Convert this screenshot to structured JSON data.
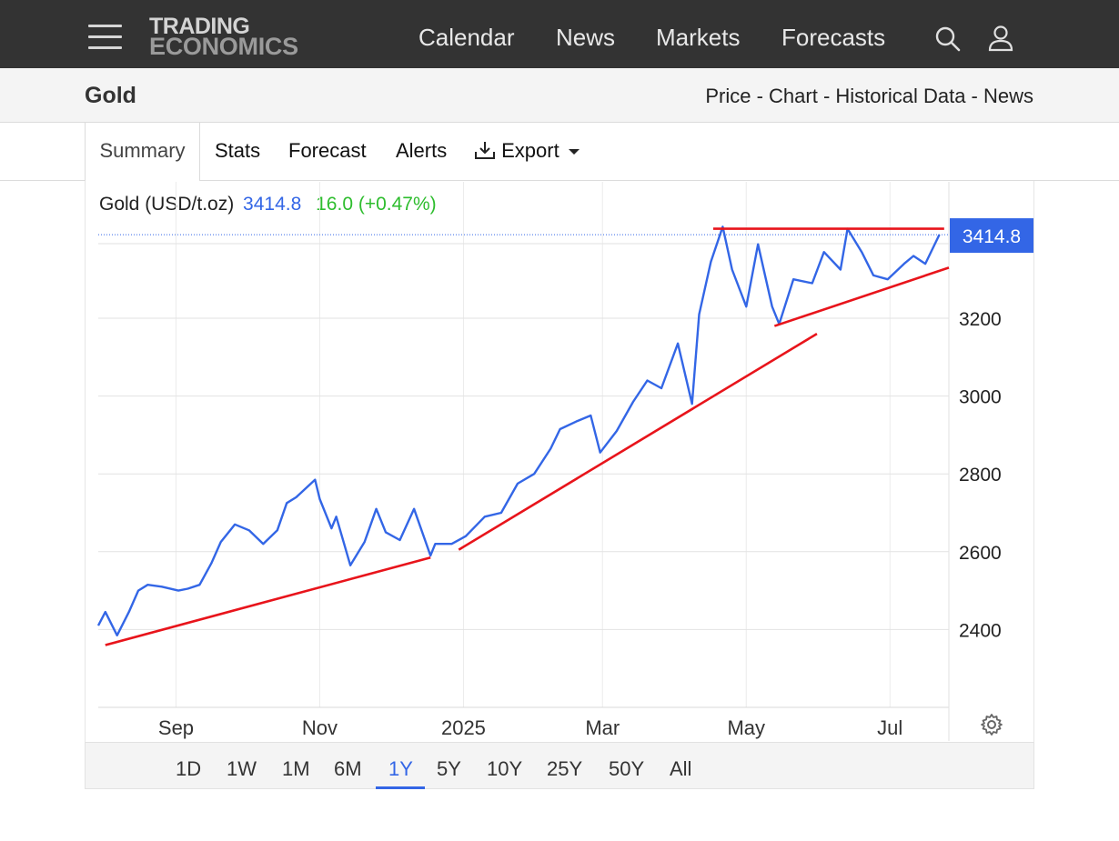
{
  "header": {
    "logo_line1": "TRADING",
    "logo_line2": "ECONOMICS",
    "nav": [
      "Calendar",
      "News",
      "Markets",
      "Forecasts"
    ]
  },
  "subheader": {
    "title": "Gold",
    "links": "Price - Chart - Historical Data - News"
  },
  "tabs": {
    "summary": "Summary",
    "stats": "Stats",
    "forecast": "Forecast",
    "alerts": "Alerts",
    "export": "Export"
  },
  "legend": {
    "name": "Gold (USD/t.oz)",
    "price": "3414.8",
    "change": "16.0 (+0.47%)"
  },
  "ranges": [
    "1D",
    "1W",
    "1M",
    "6M",
    "1Y",
    "5Y",
    "10Y",
    "25Y",
    "50Y",
    "All"
  ],
  "active_range": "1Y",
  "colors": {
    "line": "#3366e6",
    "trend": "#e8141b",
    "accent": "#3366e6",
    "positive": "#2ebd2e",
    "topbar": "#333333"
  },
  "chart_data": {
    "type": "line",
    "series": [
      {
        "name": "Gold (USD/t.oz)",
        "x": [
          "2024-07-30",
          "2024-08-02",
          "2024-08-07",
          "2024-08-12",
          "2024-08-16",
          "2024-08-20",
          "2024-08-26",
          "2024-09-02",
          "2024-09-06",
          "2024-09-11",
          "2024-09-16",
          "2024-09-20",
          "2024-09-26",
          "2024-10-02",
          "2024-10-08",
          "2024-10-14",
          "2024-10-18",
          "2024-10-22",
          "2024-10-30",
          "2024-11-01",
          "2024-11-06",
          "2024-11-08",
          "2024-11-14",
          "2024-11-20",
          "2024-11-25",
          "2024-11-29",
          "2024-12-05",
          "2024-12-11",
          "2024-12-18",
          "2024-12-20",
          "2024-12-27",
          "2025-01-02",
          "2025-01-10",
          "2025-01-17",
          "2025-01-24",
          "2025-01-31",
          "2025-02-07",
          "2025-02-11",
          "2025-02-18",
          "2025-02-24",
          "2025-02-28",
          "2025-03-07",
          "2025-03-14",
          "2025-03-20",
          "2025-03-26",
          "2025-04-02",
          "2025-04-08",
          "2025-04-11",
          "2025-04-16",
          "2025-04-21",
          "2025-04-25",
          "2025-05-01",
          "2025-05-06",
          "2025-05-12",
          "2025-05-15",
          "2025-05-21",
          "2025-05-29",
          "2025-06-03",
          "2025-06-10",
          "2025-06-13",
          "2025-06-19",
          "2025-06-24",
          "2025-06-30",
          "2025-07-07",
          "2025-07-11",
          "2025-07-16",
          "2025-07-22"
        ],
        "values": [
          2410,
          2445,
          2385,
          2445,
          2500,
          2515,
          2510,
          2500,
          2505,
          2515,
          2570,
          2625,
          2670,
          2655,
          2620,
          2655,
          2725,
          2740,
          2785,
          2735,
          2660,
          2690,
          2565,
          2625,
          2710,
          2650,
          2630,
          2710,
          2590,
          2620,
          2620,
          2640,
          2690,
          2700,
          2775,
          2800,
          2865,
          2915,
          2935,
          2950,
          2855,
          2910,
          2985,
          3040,
          3020,
          3135,
          2980,
          3210,
          3345,
          3435,
          3325,
          3230,
          3390,
          3230,
          3185,
          3300,
          3290,
          3370,
          3325,
          3430,
          3370,
          3310,
          3300,
          3340,
          3360,
          3340,
          3415
        ]
      }
    ],
    "last_value": 3414.8,
    "x_ticks": [
      "Sep",
      "Nov",
      "2025",
      "Mar",
      "May",
      "Jul"
    ],
    "y_ticks": [
      2400,
      2600,
      2800,
      3000,
      3200
    ],
    "ylim": [
      2200,
      3450
    ],
    "grid": true,
    "trendlines": [
      {
        "from": [
          "2024-08-02",
          2360
        ],
        "to": [
          "2024-12-18",
          2585
        ]
      },
      {
        "from": [
          "2024-12-30",
          2605
        ],
        "to": [
          "2025-05-31",
          3160
        ]
      },
      {
        "from": [
          "2025-05-13",
          3180
        ],
        "to": [
          "2025-07-26",
          3330
        ]
      },
      {
        "from": [
          "2025-04-17",
          3430
        ],
        "to": [
          "2025-07-24",
          3430
        ]
      }
    ]
  }
}
